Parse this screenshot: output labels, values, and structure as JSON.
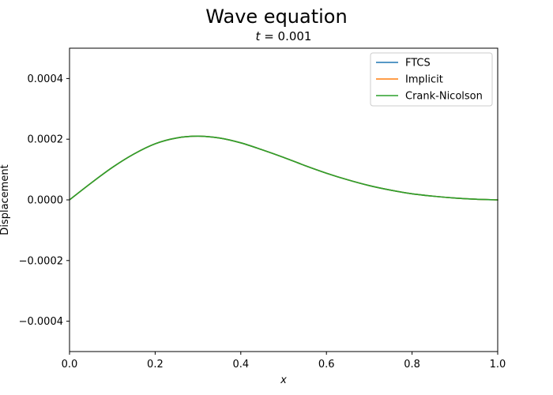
{
  "chart_data": {
    "type": "line",
    "title": "Wave equation",
    "subtitle": "t = 0.001",
    "subtitle_var": "t",
    "subtitle_rest": " = 0.001",
    "xlabel": "x",
    "ylabel": "Displacement",
    "xlim": [
      0.0,
      1.0
    ],
    "ylim": [
      -0.0005,
      0.0005
    ],
    "xticks": [
      0.0,
      0.2,
      0.4,
      0.6,
      0.8,
      1.0
    ],
    "xtick_labels": [
      "0.0",
      "0.2",
      "0.4",
      "0.6",
      "0.8",
      "1.0"
    ],
    "yticks": [
      -0.0004,
      -0.0002,
      0.0,
      0.0002,
      0.0004
    ],
    "ytick_labels": [
      "−0.0004",
      "−0.0002",
      "0.0000",
      "0.0002",
      "0.0004"
    ],
    "grid": false,
    "legend_position": "top-right",
    "x": [
      0.0,
      0.05,
      0.1,
      0.15,
      0.2,
      0.25,
      0.3,
      0.35,
      0.4,
      0.45,
      0.5,
      0.55,
      0.6,
      0.65,
      0.7,
      0.75,
      0.8,
      0.85,
      0.9,
      0.95,
      1.0
    ],
    "series": [
      {
        "name": "FTCS",
        "color": "#1f77b4",
        "values": [
          0.0,
          5.5e-05,
          0.000107,
          0.000151,
          0.000185,
          0.000204,
          0.00021,
          0.000204,
          0.000188,
          0.000165,
          0.00014,
          0.000113,
          8.8e-05,
          6.6e-05,
          4.7e-05,
          3.2e-05,
          2e-05,
          1.2e-05,
          6e-06,
          2e-06,
          0.0
        ]
      },
      {
        "name": "Implicit",
        "color": "#ff7f0e",
        "values": [
          0.0,
          5.5e-05,
          0.000107,
          0.000151,
          0.000185,
          0.000204,
          0.00021,
          0.000204,
          0.000188,
          0.000165,
          0.00014,
          0.000113,
          8.8e-05,
          6.6e-05,
          4.7e-05,
          3.2e-05,
          2e-05,
          1.2e-05,
          6e-06,
          2e-06,
          0.0
        ]
      },
      {
        "name": "Crank-Nicolson",
        "color": "#2ca02c",
        "values": [
          0.0,
          5.5e-05,
          0.000107,
          0.000151,
          0.000185,
          0.000204,
          0.00021,
          0.000204,
          0.000188,
          0.000165,
          0.00014,
          0.000113,
          8.8e-05,
          6.6e-05,
          4.7e-05,
          3.2e-05,
          2e-05,
          1.2e-05,
          6e-06,
          2e-06,
          0.0
        ]
      }
    ]
  }
}
